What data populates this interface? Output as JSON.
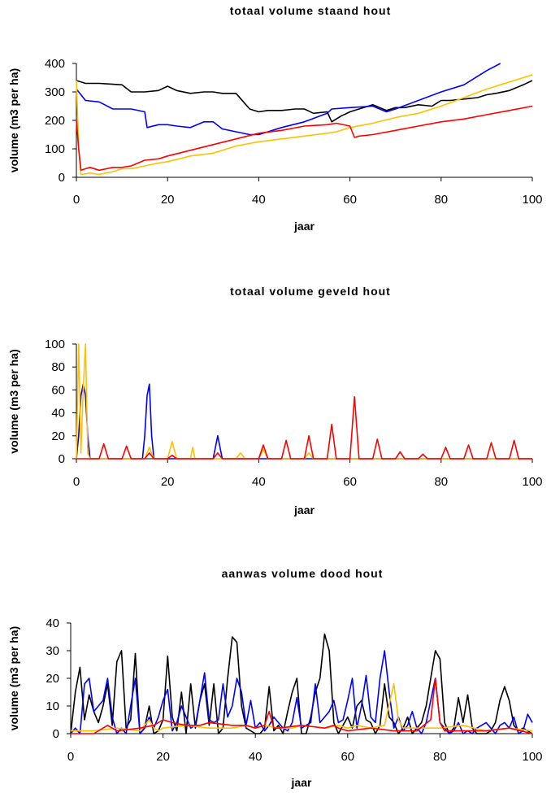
{
  "colors": {
    "black": "#000000",
    "blue": "#0000ff",
    "yellow": "#ffc000",
    "red": "#ff0000"
  },
  "chart_data": [
    {
      "type": "line",
      "title": "totaal volume staand hout",
      "xlabel": "jaar",
      "ylabel": "volume (m3 per ha)",
      "xlim": [
        0,
        100
      ],
      "ylim": [
        0,
        400
      ],
      "xticks": [
        "0",
        "20",
        "40",
        "60",
        "80",
        "100"
      ],
      "yticks": [
        "0",
        "100",
        "200",
        "300",
        "400"
      ],
      "grid": false,
      "legend": "none",
      "series": [
        {
          "color": "#000000",
          "x": [
            0,
            2,
            5,
            10,
            12,
            15,
            18,
            20,
            22,
            25,
            28,
            30,
            32,
            35,
            38,
            40,
            42,
            45,
            48,
            50,
            52,
            55,
            56,
            58,
            60,
            62,
            65,
            68,
            70,
            72,
            75,
            78,
            80,
            82,
            85,
            88,
            90,
            92,
            95,
            98,
            100
          ],
          "y": [
            340,
            330,
            330,
            325,
            300,
            300,
            305,
            320,
            305,
            295,
            300,
            300,
            295,
            295,
            240,
            230,
            235,
            235,
            240,
            240,
            225,
            230,
            195,
            215,
            230,
            240,
            255,
            235,
            245,
            245,
            255,
            250,
            270,
            270,
            275,
            280,
            290,
            295,
            305,
            325,
            340
          ]
        },
        {
          "color": "#0000ff",
          "x": [
            0,
            2,
            5,
            8,
            10,
            12,
            15,
            15.5,
            18,
            20,
            22,
            25,
            28,
            30,
            32,
            35,
            38,
            40,
            45,
            50,
            55,
            56,
            60,
            65,
            68,
            70,
            75,
            80,
            85,
            90,
            93
          ],
          "y": [
            310,
            270,
            265,
            240,
            240,
            240,
            230,
            175,
            185,
            185,
            180,
            175,
            195,
            195,
            170,
            160,
            150,
            150,
            175,
            195,
            225,
            240,
            245,
            250,
            230,
            240,
            270,
            300,
            325,
            375,
            400
          ]
        },
        {
          "color": "#ffc000",
          "x": [
            0,
            0.5,
            1,
            3,
            5,
            8,
            10,
            12,
            15,
            18,
            20,
            25,
            30,
            35,
            40,
            45,
            50,
            55,
            57,
            60,
            65,
            70,
            75,
            80,
            85,
            90,
            95,
            100
          ],
          "y": [
            340,
            100,
            10,
            15,
            10,
            20,
            30,
            30,
            40,
            50,
            55,
            75,
            85,
            110,
            125,
            135,
            145,
            155,
            160,
            175,
            190,
            210,
            225,
            250,
            280,
            310,
            335,
            360
          ]
        },
        {
          "color": "#ff0000",
          "x": [
            0,
            0.5,
            1,
            2,
            3,
            5,
            8,
            10,
            12,
            15,
            18,
            20,
            25,
            30,
            35,
            40,
            45,
            50,
            55,
            57,
            60,
            61,
            62,
            65,
            70,
            75,
            80,
            85,
            90,
            95,
            100
          ],
          "y": [
            200,
            100,
            25,
            30,
            35,
            25,
            35,
            35,
            40,
            60,
            65,
            75,
            95,
            115,
            135,
            155,
            165,
            180,
            185,
            190,
            180,
            140,
            145,
            150,
            165,
            180,
            195,
            205,
            220,
            235,
            250
          ]
        }
      ]
    },
    {
      "type": "line",
      "title": "totaal volume geveld hout",
      "xlabel": "jaar",
      "ylabel": "volume (m3 per ha)",
      "xlim": [
        0,
        100
      ],
      "ylim": [
        0,
        100
      ],
      "xticks": [
        "0",
        "20",
        "40",
        "60",
        "80",
        "100"
      ],
      "yticks": [
        "0",
        "20",
        "40",
        "60",
        "80",
        "100"
      ],
      "grid": false,
      "legend": "none",
      "series": [
        {
          "color": "#0000ff",
          "x": [
            0,
            0.5,
            1,
            1.5,
            2,
            2.5,
            3,
            14.5,
            15,
            15.5,
            16,
            16.5,
            17,
            30,
            30.5,
            31,
            31.5,
            32,
            100
          ],
          "y": [
            0,
            20,
            55,
            65,
            55,
            20,
            0,
            0,
            20,
            55,
            65,
            20,
            0,
            0,
            10,
            20,
            10,
            0,
            0
          ]
        },
        {
          "color": "#ffc000",
          "x": [
            0,
            0.5,
            1,
            1.5,
            2,
            2.5,
            3,
            15,
            16,
            17,
            20,
            21,
            22,
            25,
            25.5,
            26,
            35,
            36,
            37,
            40,
            41,
            42,
            50,
            51,
            52,
            100
          ],
          "y": [
            0,
            100,
            5,
            60,
            100,
            5,
            0,
            0,
            10,
            0,
            0,
            15,
            0,
            0,
            10,
            0,
            0,
            5,
            0,
            0,
            8,
            0,
            0,
            5,
            0,
            0
          ]
        },
        {
          "color": "#ff0000",
          "x": [
            0,
            5,
            6,
            7,
            10,
            11,
            12,
            15,
            16,
            17,
            20,
            21,
            22,
            30,
            31,
            32,
            40,
            41,
            42,
            45,
            46,
            47,
            50,
            51,
            52,
            55,
            56,
            57,
            60,
            61,
            62,
            65,
            66,
            67,
            70,
            71,
            72,
            75,
            76,
            77,
            80,
            81,
            82,
            85,
            86,
            87,
            90,
            91,
            92,
            95,
            96,
            97,
            100
          ],
          "y": [
            0,
            0,
            13,
            0,
            0,
            11,
            0,
            0,
            5,
            0,
            0,
            3,
            0,
            0,
            5,
            0,
            0,
            12,
            0,
            0,
            16,
            0,
            0,
            20,
            0,
            0,
            30,
            0,
            0,
            54,
            0,
            0,
            17,
            0,
            0,
            6,
            0,
            0,
            4,
            0,
            0,
            10,
            0,
            0,
            12,
            0,
            0,
            14,
            0,
            0,
            16,
            0,
            0
          ]
        }
      ]
    },
    {
      "type": "line",
      "title": "aanwas volume dood hout",
      "xlabel": "jaar",
      "ylabel": "volume (m3 per ha)",
      "xlim": [
        0,
        100
      ],
      "ylim": [
        0,
        40
      ],
      "xticks": [
        "0",
        "20",
        "40",
        "60",
        "80",
        "100"
      ],
      "yticks": [
        "0",
        "10",
        "20",
        "30",
        "40"
      ],
      "grid": false,
      "legend": "none",
      "series": [
        {
          "color": "#000000",
          "x": [
            0,
            1,
            2,
            3,
            4,
            5,
            6,
            7,
            8,
            9,
            10,
            11,
            12,
            13,
            14,
            15,
            16,
            17,
            18,
            19,
            20,
            21,
            22,
            23,
            24,
            25,
            26,
            27,
            28,
            29,
            30,
            31,
            32,
            33,
            34,
            35,
            36,
            37,
            38,
            39,
            40,
            41,
            42,
            43,
            44,
            45,
            46,
            47,
            48,
            49,
            50,
            51,
            52,
            53,
            54,
            55,
            56,
            57,
            58,
            59,
            60,
            61,
            62,
            63,
            64,
            65,
            66,
            67,
            68,
            69,
            70,
            71,
            72,
            73,
            74,
            75,
            76,
            77,
            78,
            79,
            80,
            81,
            82,
            83,
            84,
            85,
            86,
            87,
            88,
            89,
            90,
            91,
            92,
            93,
            94,
            95,
            96,
            97,
            98,
            99,
            100
          ],
          "y": [
            0,
            15,
            24,
            5,
            14,
            8,
            4,
            10,
            18,
            3,
            26,
            30,
            2,
            5,
            29,
            0,
            2,
            10,
            0,
            1,
            5,
            28,
            6,
            1,
            15,
            0,
            18,
            2,
            12,
            18,
            3,
            18,
            0,
            2,
            20,
            35,
            33,
            10,
            2,
            1,
            0,
            0,
            2,
            17,
            1,
            3,
            0,
            8,
            15,
            20,
            0,
            0,
            6,
            15,
            20,
            36,
            30,
            4,
            0,
            3,
            6,
            2,
            10,
            12,
            5,
            4,
            0,
            3,
            18,
            6,
            4,
            0,
            2,
            6,
            0,
            2,
            4,
            10,
            20,
            30,
            27,
            4,
            0,
            2,
            13,
            4,
            14,
            2,
            0,
            0,
            0,
            1,
            4,
            12,
            17,
            12,
            3,
            1,
            2,
            1,
            0
          ]
        },
        {
          "color": "#0000ff",
          "x": [
            0,
            1,
            2,
            3,
            4,
            5,
            6,
            7,
            8,
            9,
            10,
            11,
            12,
            13,
            14,
            15,
            16,
            17,
            18,
            19,
            20,
            21,
            22,
            23,
            24,
            25,
            26,
            27,
            28,
            29,
            30,
            31,
            32,
            33,
            34,
            35,
            36,
            37,
            38,
            39,
            40,
            41,
            42,
            43,
            44,
            45,
            46,
            47,
            48,
            49,
            50,
            51,
            52,
            53,
            54,
            55,
            56,
            57,
            58,
            59,
            60,
            61,
            62,
            63,
            64,
            65,
            66,
            67,
            68,
            69,
            70,
            71,
            72,
            73,
            74,
            75,
            76,
            77,
            78,
            79,
            80,
            81,
            82,
            83,
            84,
            85,
            86,
            87,
            88,
            89,
            90,
            91,
            92,
            93,
            94,
            95,
            96,
            97,
            98,
            99,
            100
          ],
          "y": [
            0,
            2,
            0,
            18,
            20,
            8,
            10,
            12,
            20,
            6,
            0,
            2,
            0,
            10,
            20,
            0,
            2,
            6,
            2,
            6,
            12,
            16,
            1,
            4,
            10,
            6,
            2,
            3,
            12,
            22,
            5,
            4,
            5,
            18,
            6,
            10,
            20,
            15,
            3,
            12,
            2,
            4,
            1,
            3,
            6,
            4,
            2,
            1,
            4,
            13,
            2,
            3,
            4,
            18,
            4,
            6,
            8,
            12,
            4,
            5,
            12,
            20,
            2,
            10,
            21,
            6,
            4,
            20,
            30,
            15,
            2,
            6,
            1,
            3,
            8,
            2,
            0,
            4,
            12,
            20,
            4,
            2,
            0,
            1,
            4,
            0,
            1,
            0,
            2,
            3,
            4,
            2,
            0,
            3,
            4,
            2,
            6,
            0,
            1,
            7,
            4
          ]
        },
        {
          "color": "#ffc000",
          "x": [
            0,
            5,
            10,
            15,
            17,
            18,
            19,
            20,
            25,
            30,
            35,
            38,
            40,
            42,
            45,
            48,
            50,
            55,
            58,
            60,
            62,
            65,
            68,
            70,
            71,
            72,
            75,
            80,
            85,
            90,
            95,
            100
          ],
          "y": [
            1,
            1,
            2,
            1,
            5,
            2,
            1,
            2,
            3,
            2,
            2,
            3,
            2,
            3,
            2,
            2,
            3,
            2,
            3,
            2,
            3,
            2,
            3,
            18,
            5,
            2,
            2,
            2,
            3,
            1,
            2,
            1
          ]
        },
        {
          "color": "#ff0000",
          "x": [
            0,
            5,
            8,
            10,
            15,
            18,
            20,
            22,
            25,
            28,
            30,
            35,
            38,
            40,
            42,
            43,
            44,
            45,
            50,
            55,
            57,
            58,
            60,
            65,
            70,
            75,
            78,
            79,
            80,
            81,
            85,
            90,
            95,
            100
          ],
          "y": [
            0,
            0,
            3,
            1,
            2,
            3,
            5,
            4,
            3,
            3,
            4,
            3,
            3,
            2,
            3,
            8,
            2,
            2,
            3,
            2,
            3,
            2,
            1,
            2,
            1,
            1,
            5,
            20,
            4,
            1,
            1,
            1,
            2,
            0
          ]
        }
      ]
    }
  ]
}
